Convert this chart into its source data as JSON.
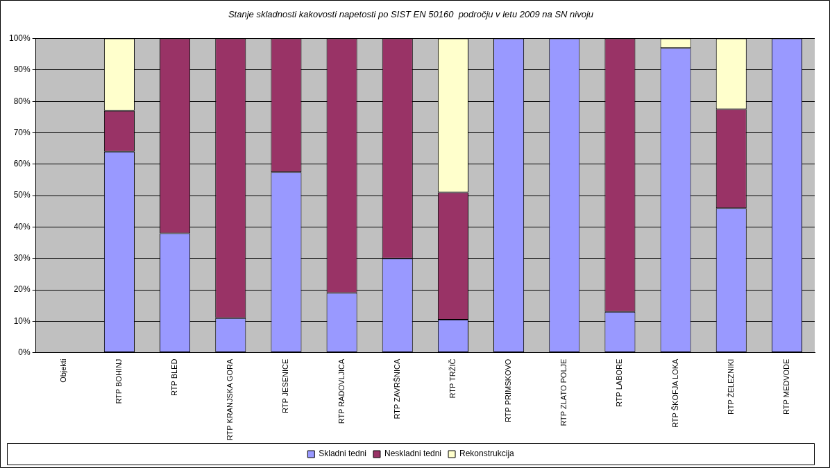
{
  "chart_data": {
    "type": "bar",
    "stacked": true,
    "title": "Stanje skladnosti kakovosti napetosti po SIST EN 50160  področju v letu 2009 na SN nivoju",
    "categories": [
      "Objekti",
      "RTP BOHINJ",
      "RTP BLED",
      "RTP KRANJSKA GORA",
      "RTP JESENICE",
      "RTP RADOVLJICA",
      "RTP ZAVRŠNICA",
      "RTP TRŽIČ",
      "RTP PRIMSKOVO",
      "RTP ZLATO POLJE",
      "RTP LABORE",
      "RTP ŠKOFJA LOKA",
      "RTP ŽELEZNIKI",
      "RTP MEDVODE"
    ],
    "series": [
      {
        "name": "Skladni tedni",
        "color": "#9999ff",
        "values": [
          null,
          64,
          38,
          11,
          57.5,
          19,
          30,
          10.5,
          100,
          100,
          13,
          97,
          46,
          100
        ]
      },
      {
        "name": "Neskladni tedni",
        "color": "#993366",
        "values": [
          null,
          13,
          62,
          89,
          42.5,
          81,
          70,
          40.5,
          0,
          0,
          87,
          0,
          31.5,
          0
        ]
      },
      {
        "name": "Rekonstrukcija",
        "color": "#ffffcc",
        "values": [
          null,
          23,
          0,
          0,
          0,
          0,
          0,
          49,
          0,
          0,
          0,
          3,
          22.5,
          0
        ]
      }
    ],
    "ylim": [
      0,
      100
    ],
    "yticks": [
      {
        "value": 0,
        "label": "0%"
      },
      {
        "value": 10,
        "label": "10%"
      },
      {
        "value": 20,
        "label": "20%"
      },
      {
        "value": 30,
        "label": "30%"
      },
      {
        "value": 40,
        "label": "40%"
      },
      {
        "value": 50,
        "label": "50%"
      },
      {
        "value": 60,
        "label": "60%"
      },
      {
        "value": 70,
        "label": "70%"
      },
      {
        "value": 80,
        "label": "80%"
      },
      {
        "value": 90,
        "label": "90%"
      },
      {
        "value": 100,
        "label": "100%"
      }
    ],
    "grid": "y",
    "legend": "bottom"
  }
}
